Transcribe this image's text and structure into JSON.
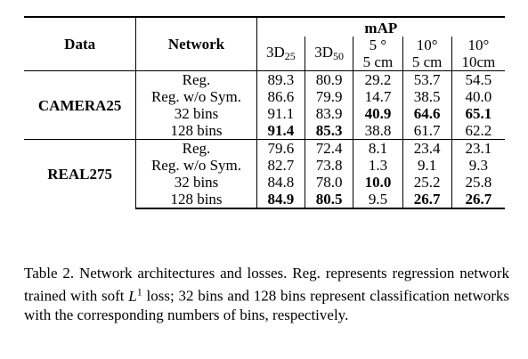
{
  "table": {
    "header": {
      "data": "Data",
      "network": "Network",
      "map": "mAP",
      "metrics": [
        {
          "main": "3D",
          "sub": "25"
        },
        {
          "main": "3D",
          "sub": "50"
        },
        {
          "line1": "5 °",
          "line2": "5 cm"
        },
        {
          "line1": "10°",
          "line2": "5 cm"
        },
        {
          "line1": "10°",
          "line2": "10cm"
        }
      ]
    },
    "sections": [
      {
        "dataset": "CAMERA25",
        "rows": [
          {
            "network": "Reg.",
            "values": [
              "89.3",
              "80.9",
              "29.2",
              "53.7",
              "54.5"
            ],
            "bold": [
              false,
              false,
              false,
              false,
              false
            ]
          },
          {
            "network": "Reg. w/o Sym.",
            "values": [
              "86.6",
              "79.9",
              "14.7",
              "38.5",
              "40.0"
            ],
            "bold": [
              false,
              false,
              false,
              false,
              false
            ]
          },
          {
            "network": "32 bins",
            "values": [
              "91.1",
              "83.9",
              "40.9",
              "64.6",
              "65.1"
            ],
            "bold": [
              false,
              false,
              true,
              true,
              true
            ]
          },
          {
            "network": "128 bins",
            "values": [
              "91.4",
              "85.3",
              "38.8",
              "61.7",
              "62.2"
            ],
            "bold": [
              true,
              true,
              false,
              false,
              false
            ]
          }
        ]
      },
      {
        "dataset": "REAL275",
        "rows": [
          {
            "network": "Reg.",
            "values": [
              "79.6",
              "72.4",
              "8.1",
              "23.4",
              "23.1"
            ],
            "bold": [
              false,
              false,
              false,
              false,
              false
            ]
          },
          {
            "network": "Reg. w/o Sym.",
            "values": [
              "82.7",
              "73.8",
              "1.3",
              "9.1",
              "9.3"
            ],
            "bold": [
              false,
              false,
              false,
              false,
              false
            ]
          },
          {
            "network": "32 bins",
            "values": [
              "84.8",
              "78.0",
              "10.0",
              "25.2",
              "25.8"
            ],
            "bold": [
              false,
              false,
              true,
              false,
              false
            ]
          },
          {
            "network": "128 bins",
            "values": [
              "84.9",
              "80.5",
              "9.5",
              "26.7",
              "26.7"
            ],
            "bold": [
              true,
              true,
              false,
              true,
              true
            ]
          }
        ]
      }
    ]
  },
  "caption": {
    "label": "Table 2.",
    "text_before": " Network architectures and losses.  Reg.  represents regression network trained with soft ",
    "math_main": "L",
    "math_sup": "1",
    "text_after": " loss; 32 bins and 128 bins represent classification networks with the corresponding numbers of bins, respectively."
  }
}
